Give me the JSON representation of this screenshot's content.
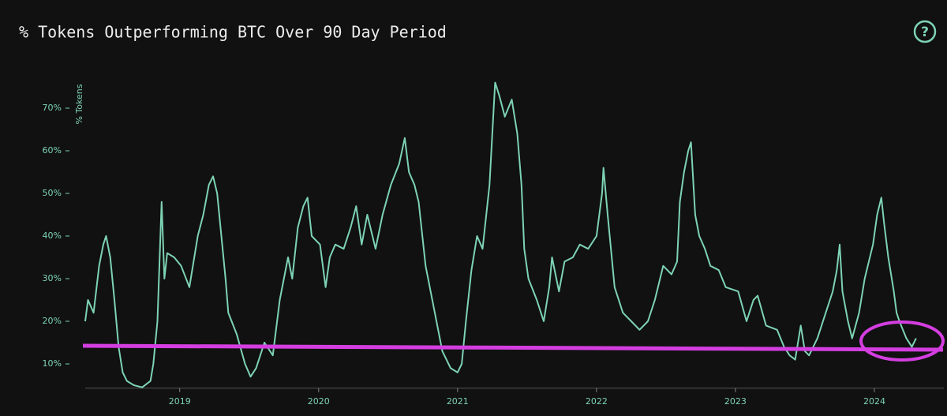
{
  "chart_data": {
    "type": "line",
    "title": "% Tokens Outperforming BTC Over 90 Day Period",
    "help_icon": "?",
    "y_label": "% Tokens",
    "color": "#7dd3b4",
    "x": [
      2018.32,
      2018.34,
      2018.38,
      2018.42,
      2018.45,
      2018.47,
      2018.5,
      2018.53,
      2018.56,
      2018.59,
      2018.62,
      2018.67,
      2018.73,
      2018.79,
      2018.81,
      2018.84,
      2018.87,
      2018.89,
      2018.91,
      2018.96,
      2019.01,
      2019.07,
      2019.13,
      2019.17,
      2019.21,
      2019.24,
      2019.27,
      2019.3,
      2019.33,
      2019.35,
      2019.41,
      2019.47,
      2019.51,
      2019.55,
      2019.61,
      2019.67,
      2019.72,
      2019.78,
      2019.81,
      2019.85,
      2019.89,
      2019.92,
      2019.95,
      2020.01,
      2020.05,
      2020.08,
      2020.12,
      2020.18,
      2020.23,
      2020.27,
      2020.31,
      2020.35,
      2020.41,
      2020.46,
      2020.52,
      2020.58,
      2020.62,
      2020.65,
      2020.69,
      2020.72,
      2020.77,
      2020.83,
      2020.89,
      2020.95,
      2021.0,
      2021.03,
      2021.06,
      2021.1,
      2021.14,
      2021.18,
      2021.23,
      2021.26,
      2021.27,
      2021.3,
      2021.34,
      2021.39,
      2021.43,
      2021.46,
      2021.48,
      2021.51,
      2021.57,
      2021.62,
      2021.66,
      2021.68,
      2021.73,
      2021.77,
      2021.83,
      2021.88,
      2021.94,
      2022.0,
      2022.04,
      2022.05,
      2022.08,
      2022.13,
      2022.19,
      2022.25,
      2022.31,
      2022.37,
      2022.42,
      2022.48,
      2022.54,
      2022.58,
      2022.6,
      2022.63,
      2022.66,
      2022.68,
      2022.71,
      2022.74,
      2022.78,
      2022.82,
      2022.88,
      2022.93,
      2023.02,
      2023.08,
      2023.13,
      2023.16,
      2023.22,
      2023.3,
      2023.35,
      2023.39,
      2023.43,
      2023.47,
      2023.5,
      2023.53,
      2023.59,
      2023.64,
      2023.7,
      2023.73,
      2023.75,
      2023.77,
      2023.81,
      2023.84,
      2023.89,
      2023.93,
      2023.99,
      2024.02,
      2024.05,
      2024.07,
      2024.1,
      2024.14,
      2024.16,
      2024.18,
      2024.23,
      2024.27,
      2024.3
    ],
    "values": [
      20,
      25,
      22,
      33,
      38,
      40,
      35,
      25,
      14,
      8,
      6,
      5,
      4.5,
      6,
      10,
      20,
      48,
      30,
      36,
      35,
      33,
      28,
      40,
      45,
      52,
      54,
      50,
      40,
      30,
      22,
      17,
      10,
      7,
      9,
      15,
      12,
      25,
      35,
      30,
      42,
      47,
      49,
      40,
      38,
      28,
      35,
      38,
      37,
      42,
      47,
      38,
      45,
      37,
      45,
      52,
      57,
      63,
      55,
      52,
      48,
      33,
      23,
      13,
      9,
      8,
      10,
      20,
      32,
      40,
      37,
      52,
      70,
      76,
      73,
      68,
      72,
      64,
      52,
      37,
      30,
      25,
      20,
      28,
      35,
      27,
      34,
      35,
      38,
      37,
      40,
      50,
      56,
      45,
      28,
      22,
      20,
      18,
      20,
      25,
      33,
      31,
      34,
      48,
      55,
      60,
      62,
      45,
      40,
      37,
      33,
      32,
      28,
      27,
      20,
      25,
      26,
      19,
      18,
      14,
      12,
      11,
      19,
      13,
      12,
      16,
      21,
      27,
      32,
      38,
      27,
      20,
      16,
      22,
      30,
      38,
      45,
      49,
      43,
      35,
      27,
      22,
      20,
      16,
      14,
      16
    ],
    "xlim": [
      2018.32,
      2024.5
    ],
    "xticks": [
      2019,
      2020,
      2021,
      2022,
      2023,
      2024
    ],
    "ylim": [
      4.3,
      77
    ],
    "yticks": [
      {
        "value": 10,
        "label": "10%"
      },
      {
        "value": 20,
        "label": "20%"
      },
      {
        "value": 30,
        "label": "30%"
      },
      {
        "value": 40,
        "label": "40%"
      },
      {
        "value": 50,
        "label": "50%"
      },
      {
        "value": 60,
        "label": "60%"
      },
      {
        "value": 70,
        "label": "70%"
      }
    ]
  }
}
